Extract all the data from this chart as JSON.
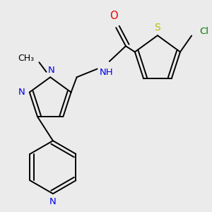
{
  "background_color": "#ebebeb",
  "atom_colors": {
    "C": "#000000",
    "N": "#0000ee",
    "O": "#ee0000",
    "S": "#bbbb00",
    "Cl": "#007700",
    "H": "#000000"
  },
  "bond_color": "#000000",
  "label_fontsize": 9.5,
  "lw": 1.4
}
